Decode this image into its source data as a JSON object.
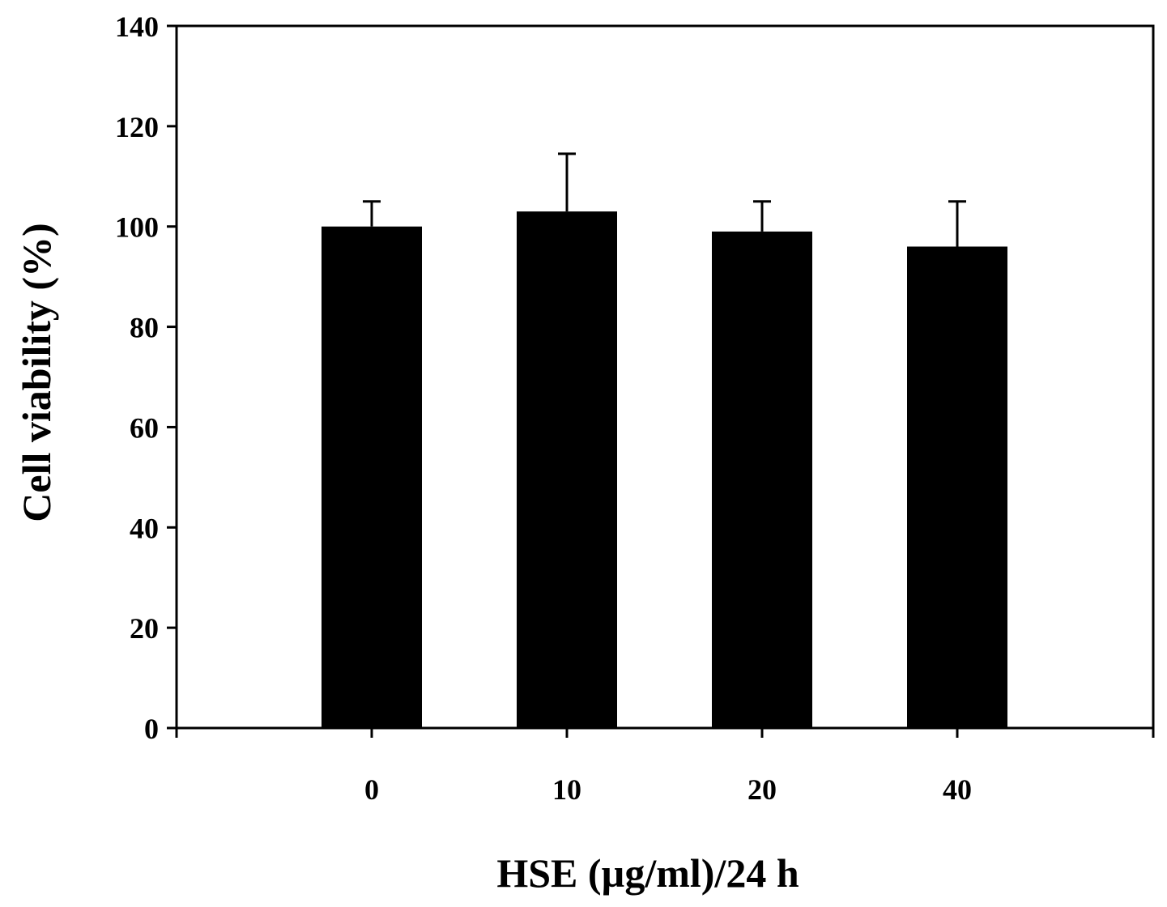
{
  "chart_data": {
    "type": "bar",
    "categories": [
      "0",
      "10",
      "20",
      "40"
    ],
    "series": [
      {
        "values": [
          100,
          103,
          99,
          96
        ],
        "error": [
          5,
          11.5,
          6,
          9
        ]
      }
    ],
    "xlabel": "HSE (µg/ml)/24 h",
    "ylabel": "Cell viability (%)",
    "ylim": [
      0,
      140
    ],
    "yticks": [
      "0",
      "20",
      "40",
      "60",
      "80",
      "100",
      "120",
      "140"
    ],
    "grid": false,
    "legend": "none",
    "bar_color": "#000000"
  }
}
